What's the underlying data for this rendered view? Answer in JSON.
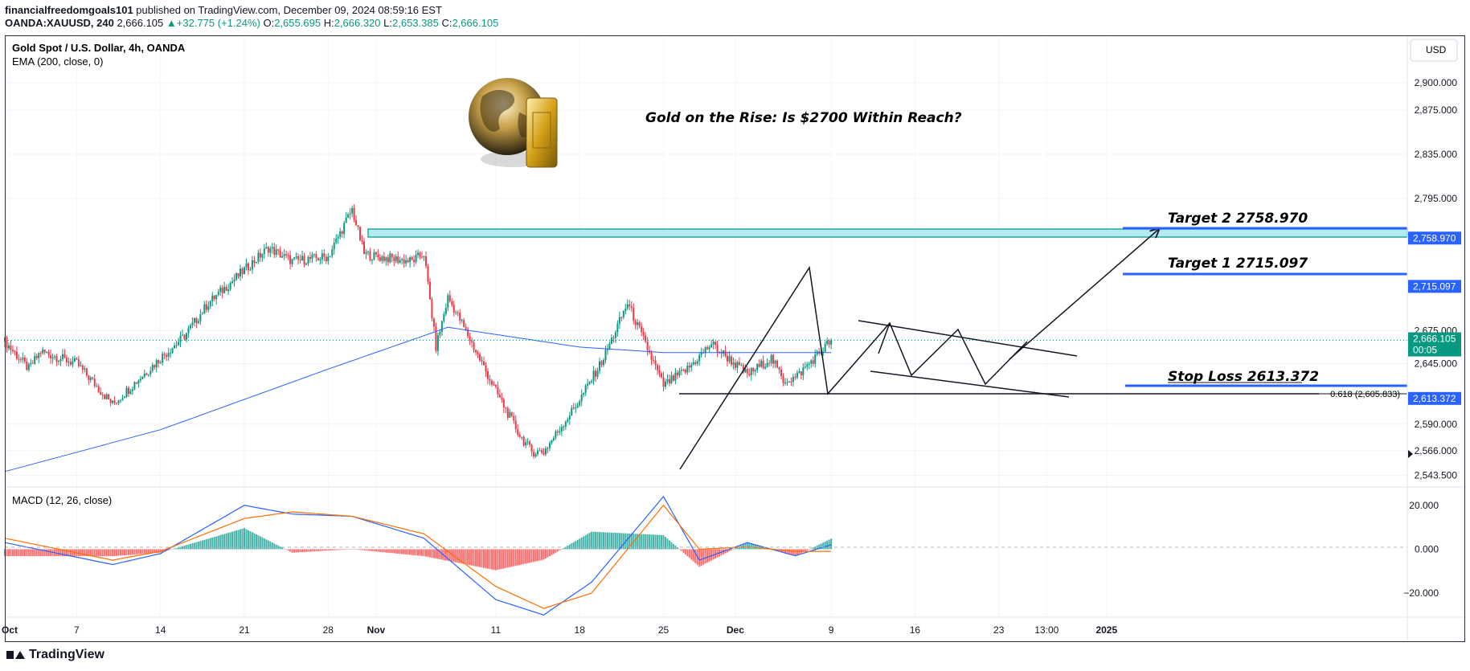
{
  "header": {
    "author": "financialfreedomgoals101",
    "published_text": "published on TradingView.com, December 09, 2024 08:59:16 EST",
    "symbol": "OANDA:XAUUSD, 240",
    "last": "2,666.105",
    "change": "+32.775 (+1.24%)",
    "open_label": "O:",
    "open": "2,655.695",
    "high_label": "H:",
    "high": "2,666.320",
    "low_label": "L:",
    "low": "2,653.385",
    "close_label": "C:",
    "close": "2,666.105"
  },
  "legend": {
    "title": "Gold Spot / U.S. Dollar, 4h, OANDA",
    "ema": "EMA (200, close, 0)",
    "macd": "MACD (12, 26, close)"
  },
  "currency_button": "USD",
  "headline": "Gold on the Rise: Is $2700 Within Reach?",
  "footer": {
    "brand": "TradingView"
  },
  "colors": {
    "up": "#089981",
    "down": "#f23645",
    "ema": "#2962ff",
    "accent_blue": "#2962ff",
    "zone": "#b2ebf2"
  },
  "chart_data": {
    "type": "candlestick",
    "title": "Gold Spot / U.S. Dollar, 4h, OANDA",
    "price_axis": {
      "ticks": [
        "2,900.000",
        "2,875.000",
        "2,835.000",
        "2,795.000",
        "2,675.000",
        "2,645.000",
        "2,590.000",
        "2,566.000",
        "2,543.500"
      ],
      "tick_values": [
        2900,
        2875,
        2835,
        2795,
        2675,
        2645,
        2590,
        2566,
        2543.5
      ],
      "range": [
        2533,
        2943
      ]
    },
    "time_axis": {
      "labels": [
        "Oct",
        "7",
        "14",
        "21",
        "28",
        "Nov",
        "11",
        "18",
        "25",
        "Dec",
        "9",
        "16",
        "23",
        "13:00",
        "2025"
      ],
      "bold": [
        "Oct",
        "Nov",
        "Dec",
        "2025"
      ]
    },
    "price_tags": [
      {
        "value": "2,758.970",
        "color": "#2962ff"
      },
      {
        "value": "2,715.097",
        "color": "#2962ff"
      },
      {
        "value": "2,666.105",
        "sub": "00:05",
        "color": "#089981"
      },
      {
        "value": "2,613.372",
        "color": "#2962ff"
      }
    ],
    "annotations": {
      "target2": "Target 2  2758.970",
      "target1": "Target 1  2715.097",
      "stop": "Stop Loss 2613.372",
      "fib": "0.618 (2,605.833)"
    },
    "levels": {
      "target2": 2758.97,
      "target1": 2715.097,
      "stop": 2613.372,
      "fib": 2605.833,
      "last": 2666.105
    },
    "anchors": [
      {
        "x": "Oct 1",
        "close": 2665
      },
      {
        "x": "Oct 3",
        "close": 2640
      },
      {
        "x": "Oct 4",
        "close": 2656
      },
      {
        "x": "Oct 7",
        "close": 2645
      },
      {
        "x": "Oct 10",
        "close": 2608
      },
      {
        "x": "Oct 14",
        "close": 2650
      },
      {
        "x": "Oct 16",
        "close": 2670
      },
      {
        "x": "Oct 18",
        "close": 2700
      },
      {
        "x": "Oct 21",
        "close": 2730
      },
      {
        "x": "Oct 23",
        "close": 2750
      },
      {
        "x": "Oct 25",
        "close": 2738
      },
      {
        "x": "Oct 28",
        "close": 2742
      },
      {
        "x": "Oct 30",
        "close": 2785
      },
      {
        "x": "Oct 31",
        "close": 2745
      },
      {
        "x": "Nov 1",
        "close": 2742
      },
      {
        "x": "Nov 4",
        "close": 2738
      },
      {
        "x": "Nov 5",
        "close": 2745
      },
      {
        "x": "Nov 6",
        "close": 2660
      },
      {
        "x": "Nov 7",
        "close": 2705
      },
      {
        "x": "Nov 8",
        "close": 2685
      },
      {
        "x": "Nov 11",
        "close": 2620
      },
      {
        "x": "Nov 12",
        "close": 2600
      },
      {
        "x": "Nov 13",
        "close": 2580
      },
      {
        "x": "Nov 14",
        "close": 2565
      },
      {
        "x": "Nov 15",
        "close": 2565
      },
      {
        "x": "Nov 18",
        "close": 2612
      },
      {
        "x": "Nov 20",
        "close": 2650
      },
      {
        "x": "Nov 22",
        "close": 2700
      },
      {
        "x": "Nov 25",
        "close": 2625
      },
      {
        "x": "Nov 27",
        "close": 2640
      },
      {
        "x": "Nov 29",
        "close": 2663
      },
      {
        "x": "Dec 2",
        "close": 2635
      },
      {
        "x": "Dec 4",
        "close": 2650
      },
      {
        "x": "Dec 5",
        "close": 2630
      },
      {
        "x": "Dec 6",
        "close": 2632
      },
      {
        "x": "Dec 9",
        "close": 2666.105
      }
    ],
    "ema200": [
      {
        "x": "Oct 1",
        "value": 2547
      },
      {
        "x": "Oct 14",
        "value": 2585
      },
      {
        "x": "Oct 28",
        "value": 2640
      },
      {
        "x": "Nov 7",
        "value": 2678
      },
      {
        "x": "Nov 18",
        "value": 2660
      },
      {
        "x": "Nov 25",
        "value": 2655
      },
      {
        "x": "Dec 9",
        "value": 2655
      }
    ],
    "macd_panel": {
      "title": "MACD (12, 26, close)",
      "ticks": [
        "20.000",
        "0.000",
        "−20.000"
      ],
      "tick_values": [
        20,
        0,
        -20
      ],
      "range": [
        -31,
        28
      ],
      "macd": [
        {
          "x": "Oct 1",
          "value": 3
        },
        {
          "x": "Oct 10",
          "value": -7
        },
        {
          "x": "Oct 14",
          "value": -2
        },
        {
          "x": "Oct 21",
          "value": 20
        },
        {
          "x": "Oct 25",
          "value": 16
        },
        {
          "x": "Oct 30",
          "value": 15
        },
        {
          "x": "Nov 5",
          "value": 5
        },
        {
          "x": "Nov 11",
          "value": -23
        },
        {
          "x": "Nov 15",
          "value": -30
        },
        {
          "x": "Nov 19",
          "value": -15
        },
        {
          "x": "Nov 25",
          "value": 24
        },
        {
          "x": "Nov 28",
          "value": -5
        },
        {
          "x": "Dec 2",
          "value": 3
        },
        {
          "x": "Dec 6",
          "value": -3
        },
        {
          "x": "Dec 9",
          "value": 2
        }
      ],
      "signal": [
        {
          "x": "Oct 1",
          "value": 5
        },
        {
          "x": "Oct 10",
          "value": -5
        },
        {
          "x": "Oct 14",
          "value": -1
        },
        {
          "x": "Oct 21",
          "value": 14
        },
        {
          "x": "Oct 25",
          "value": 17
        },
        {
          "x": "Oct 30",
          "value": 15
        },
        {
          "x": "Nov 5",
          "value": 7
        },
        {
          "x": "Nov 11",
          "value": -17
        },
        {
          "x": "Nov 15",
          "value": -27
        },
        {
          "x": "Nov 19",
          "value": -20
        },
        {
          "x": "Nov 25",
          "value": 20
        },
        {
          "x": "Nov 28",
          "value": 0
        },
        {
          "x": "Dec 2",
          "value": 1
        },
        {
          "x": "Dec 6",
          "value": -1
        },
        {
          "x": "Dec 9",
          "value": -1
        }
      ]
    }
  }
}
